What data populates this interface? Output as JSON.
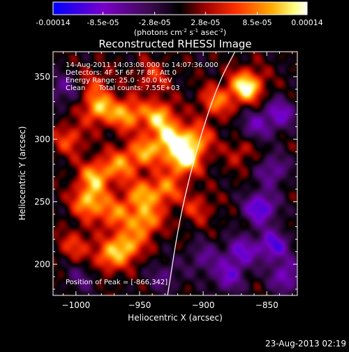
{
  "footer_date": "23-Aug-2013 02:19",
  "colorbar": {
    "ticks": [
      "-0.00014",
      "-8.5e-05",
      "-2.8e-05",
      "2.8e-05",
      "8.5e-05",
      "0.00014"
    ],
    "tick_values": [
      -0.00014,
      -8.5e-05,
      -2.8e-05,
      2.8e-05,
      8.5e-05,
      0.00014
    ],
    "range": [
      -0.00014,
      0.00014
    ],
    "unit_base": "(photons cm",
    "unit_exp1": "-2",
    "unit_mid": " s",
    "unit_exp2": "-1",
    "unit_mid2": " asec",
    "unit_exp3": "-2",
    "unit_end": ")"
  },
  "annotations": {
    "time": "14-Aug-2011 14:03:08.000 to 14:07:36.000",
    "detectors": "Detectors: 4F 5F 6F 7F 8F, Att 0",
    "energy": "Energy Range: 25.0 - 50.0 keV",
    "clean": "Clean      Total counts: 7.55E+03",
    "peak": "Position of Peak = [-866,342]"
  },
  "chart_data": {
    "type": "heatmap",
    "title": "Reconstructed RHESSI Image",
    "xlabel": "Heliocentric X (arcsec)",
    "ylabel": "Heliocentric Y (arcsec)",
    "xlim": [
      -1018,
      -826
    ],
    "ylim": [
      175,
      370
    ],
    "xticks": [
      -1000,
      -950,
      -900,
      -850
    ],
    "yticks": [
      200,
      250,
      300,
      350
    ],
    "xtick_labels": [
      "−1000",
      "−950",
      "−900",
      "−850"
    ],
    "ytick_labels": [
      "200",
      "250",
      "300",
      "350"
    ],
    "peak_position": [
      -866,
      342
    ],
    "colormap": [
      "#0000ff",
      "#7a00c8",
      "#3c0a50",
      "#000000",
      "#a00000",
      "#ff3000",
      "#ffaa00",
      "#ffff80",
      "#ffffff"
    ],
    "emission_peaks": [
      [
        -866,
        342,
        1.0
      ],
      [
        -982,
        325,
        0.75
      ],
      [
        -960,
        320,
        0.7
      ],
      [
        -935,
        318,
        0.75
      ],
      [
        -925,
        300,
        0.8
      ],
      [
        -915,
        284,
        0.95
      ],
      [
        -905,
        300,
        0.6
      ],
      [
        -945,
        290,
        0.65
      ],
      [
        -965,
        280,
        0.6
      ],
      [
        -985,
        270,
        0.7
      ],
      [
        -990,
        250,
        0.75
      ],
      [
        -970,
        240,
        0.55
      ],
      [
        -950,
        255,
        0.6
      ],
      [
        -930,
        260,
        0.6
      ],
      [
        -945,
        235,
        0.7
      ],
      [
        -960,
        215,
        0.75
      ],
      [
        -975,
        205,
        0.55
      ],
      [
        -1005,
        300,
        0.45
      ],
      [
        -1000,
        215,
        0.4
      ],
      [
        -890,
        330,
        0.55
      ],
      [
        -905,
        245,
        0.35
      ],
      [
        -870,
        290,
        0.3
      ],
      [
        -940,
        350,
        0.35
      ],
      [
        -985,
        345,
        0.3
      ]
    ],
    "negative_regions": [
      [
        -855,
        245,
        -0.8
      ],
      [
        -845,
        215,
        -0.7
      ],
      [
        -870,
        210,
        -0.6
      ],
      [
        -840,
        320,
        -0.6
      ],
      [
        -845,
        275,
        -0.5
      ],
      [
        -880,
        190,
        -0.55
      ],
      [
        -900,
        205,
        -0.4
      ],
      [
        -835,
        190,
        -0.6
      ],
      [
        -860,
        310,
        -0.45
      ],
      [
        -1010,
        340,
        -0.4
      ],
      [
        -930,
        190,
        -0.35
      ],
      [
        -995,
        190,
        -0.3
      ]
    ],
    "limb_curve": [
      [
        -928,
        175
      ],
      [
        -918,
        240
      ],
      [
        -903,
        300
      ],
      [
        -888,
        345
      ],
      [
        -875,
        370
      ]
    ]
  }
}
